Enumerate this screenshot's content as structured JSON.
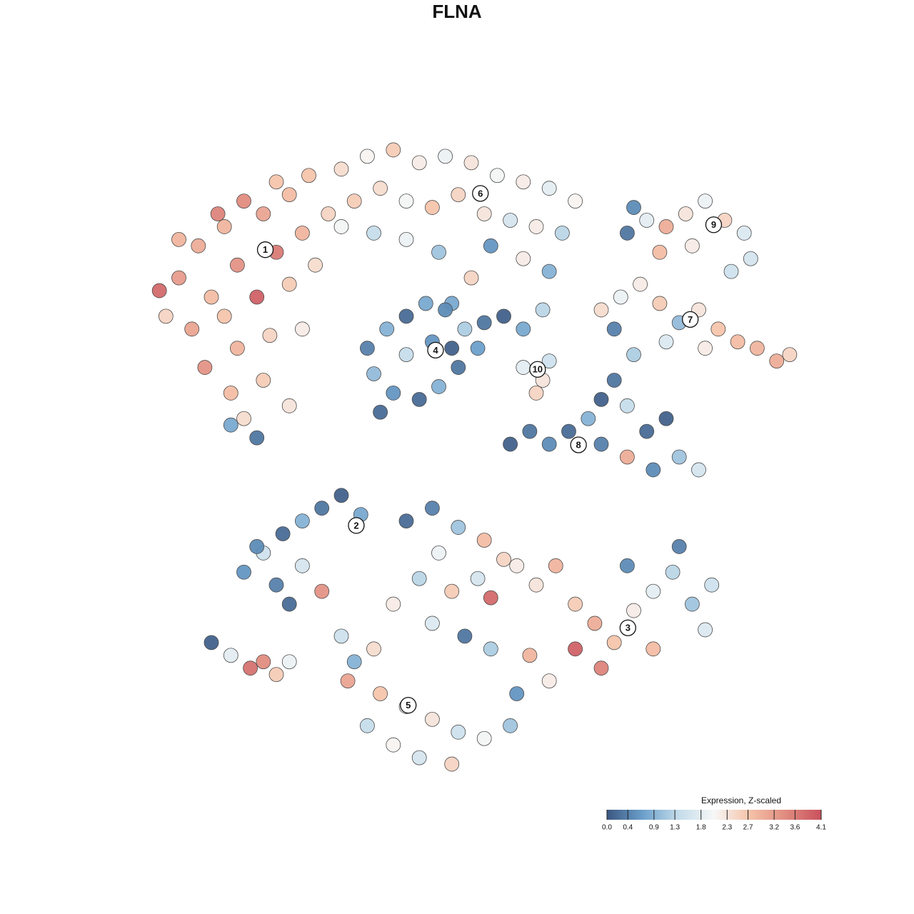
{
  "chart_data": {
    "type": "scatter",
    "title": "FLNA",
    "x": [
      5,
      8,
      12,
      15,
      18,
      22,
      25,
      10,
      14,
      20,
      24,
      3,
      7,
      12,
      17,
      22,
      26,
      9,
      14,
      19,
      24,
      13,
      18,
      22,
      15,
      13,
      17,
      2,
      5,
      28,
      20,
      11,
      30,
      34,
      38,
      42,
      46,
      50,
      54,
      58,
      62,
      66,
      32,
      36,
      40,
      44,
      48,
      52,
      56,
      60,
      64,
      30,
      35,
      40,
      45,
      53,
      58,
      62,
      50,
      47,
      74,
      77,
      80,
      83,
      86,
      89,
      92,
      93,
      79,
      84,
      90,
      75,
      70,
      73,
      76,
      79,
      82,
      85,
      88,
      91,
      94,
      97,
      99,
      86,
      80,
      75,
      72,
      34,
      37,
      40,
      43,
      46,
      49,
      51,
      48,
      45,
      42,
      38,
      35,
      40,
      44,
      47,
      52,
      55,
      58,
      61,
      36,
      58,
      61,
      62,
      60,
      56,
      59,
      62,
      65,
      68,
      70,
      72,
      74,
      77,
      80,
      82,
      85,
      78,
      74,
      70,
      15,
      18,
      21,
      24,
      27,
      30,
      33,
      20,
      24,
      27,
      22,
      17,
      10,
      13,
      16,
      18,
      20,
      22,
      60,
      63,
      66,
      69,
      72,
      75,
      78,
      81,
      84,
      87,
      78,
      70,
      66,
      62,
      74,
      82,
      59,
      86,
      40,
      44,
      48,
      52,
      55,
      45,
      42,
      47,
      51,
      38,
      44,
      49,
      53,
      35,
      31,
      36,
      40,
      44,
      48,
      52,
      56,
      38,
      42,
      47,
      34,
      57,
      32,
      30,
      53,
      57
    ],
    "y": [
      78,
      83,
      86,
      90,
      88,
      91,
      94,
      75,
      80,
      82,
      85,
      72,
      70,
      72,
      75,
      77,
      80,
      64,
      67,
      69,
      70,
      60,
      62,
      58,
      56,
      55,
      53,
      76,
      84,
      88,
      93,
      88,
      95,
      97,
      98,
      96,
      97,
      96,
      94,
      93,
      92,
      90,
      90,
      92,
      90,
      89,
      91,
      88,
      87,
      86,
      85,
      86,
      85,
      84,
      82,
      83,
      81,
      79,
      78,
      74,
      85,
      87,
      86,
      88,
      90,
      87,
      85,
      81,
      82,
      83,
      79,
      89,
      73,
      75,
      77,
      74,
      71,
      73,
      70,
      68,
      67,
      65,
      66,
      67,
      68,
      66,
      70,
      67,
      70,
      72,
      74,
      73,
      70,
      67,
      64,
      61,
      59,
      60,
      63,
      66,
      68,
      67,
      71,
      72,
      70,
      73,
      57,
      64,
      62,
      65,
      60,
      52,
      54,
      52,
      54,
      56,
      59,
      62,
      58,
      54,
      56,
      50,
      48,
      48,
      50,
      52,
      32,
      35,
      38,
      40,
      42,
      44,
      41,
      30,
      33,
      29,
      27,
      36,
      21,
      19,
      17,
      18,
      16,
      18,
      30,
      33,
      27,
      24,
      21,
      26,
      29,
      32,
      27,
      30,
      20,
      17,
      20,
      15,
      33,
      36,
      19,
      23,
      40,
      42,
      39,
      37,
      34,
      35,
      31,
      29,
      31,
      27,
      24,
      22,
      20,
      20,
      15,
      13,
      11,
      9,
      7,
      6,
      8,
      5,
      3,
      2,
      8,
      13,
      18,
      22,
      28,
      33
    ],
    "values": [
      3.2,
      3.0,
      2.9,
      3.4,
      3.1,
      2.8,
      2.7,
      2.8,
      3.3,
      3.6,
      2.9,
      2.5,
      3.1,
      2.7,
      3.9,
      2.6,
      2.4,
      3.3,
      2.9,
      2.5,
      2.2,
      2.8,
      2.6,
      2.3,
      2.4,
      0.8,
      0.3,
      3.8,
      2.9,
      2.5,
      2.7,
      3.5,
      2.4,
      2.1,
      2.6,
      2.2,
      1.9,
      2.3,
      2.0,
      2.2,
      1.8,
      2.1,
      2.6,
      2.4,
      2.0,
      2.7,
      2.5,
      2.3,
      1.6,
      2.2,
      1.3,
      2.0,
      1.4,
      1.9,
      1.1,
      0.6,
      2.2,
      0.9,
      2.5,
      0.8,
      0.3,
      1.8,
      3.0,
      2.3,
      1.9,
      2.5,
      1.7,
      1.6,
      2.8,
      2.2,
      1.5,
      0.5,
      2.4,
      1.9,
      2.2,
      2.6,
      1.0,
      2.3,
      2.7,
      2.8,
      2.9,
      3.0,
      2.5,
      2.2,
      1.7,
      1.2,
      0.4,
      0.4,
      0.9,
      0.2,
      0.8,
      0.5,
      1.2,
      0.7,
      0.3,
      0.9,
      0.2,
      0.6,
      1.0,
      1.4,
      0.6,
      0.1,
      0.3,
      0.1,
      0.8,
      1.3,
      0.2,
      1.8,
      2.3,
      1.5,
      2.5,
      0.1,
      0.3,
      0.5,
      0.2,
      0.9,
      0.1,
      0.3,
      1.4,
      0.2,
      0.1,
      1.1,
      1.6,
      0.5,
      3.0,
      0.4,
      0.6,
      1.5,
      0.2,
      0.9,
      0.3,
      0.1,
      0.8,
      0.4,
      1.6,
      3.3,
      0.2,
      0.5,
      0.1,
      1.8,
      3.7,
      3.4,
      2.6,
      1.9,
      2.3,
      2.9,
      2.6,
      3.0,
      2.7,
      2.2,
      1.8,
      1.3,
      1.1,
      1.5,
      2.8,
      3.5,
      3.9,
      2.2,
      0.5,
      0.4,
      2.9,
      1.7,
      0.2,
      0.4,
      1.1,
      2.8,
      2.5,
      1.9,
      1.3,
      2.6,
      1.6,
      2.2,
      1.7,
      0.3,
      1.2,
      2.4,
      3.1,
      2.7,
      1.9,
      2.3,
      1.5,
      2.0,
      1.1,
      2.1,
      1.6,
      2.5,
      1.4,
      0.6,
      0.9,
      1.5,
      3.8,
      2.2
    ],
    "xlim": [
      0,
      100
    ],
    "ylim": [
      0,
      100
    ],
    "annotations": [
      {
        "text": "1",
        "x": 18.3,
        "y": 82.4
      },
      {
        "text": "2",
        "x": 32.3,
        "y": 39.3
      },
      {
        "text": "3",
        "x": 74.1,
        "y": 23.3
      },
      {
        "text": "4",
        "x": 44.5,
        "y": 66.7
      },
      {
        "text": "5",
        "x": 40.3,
        "y": 11.2
      },
      {
        "text": "6",
        "x": 51.4,
        "y": 91.2
      },
      {
        "text": "7",
        "x": 83.7,
        "y": 71.5
      },
      {
        "text": "8",
        "x": 66.5,
        "y": 51.9
      },
      {
        "text": "9",
        "x": 87.3,
        "y": 86.3
      },
      {
        "text": "10",
        "x": 60.2,
        "y": 63.7
      }
    ],
    "colorbar": {
      "title": "Expression, Z-scaled",
      "lim": [
        0,
        4.1
      ],
      "colors": [
        "#3b5780",
        "#6a9fcb",
        "#c3dcea",
        "#f7f7f7",
        "#f5c2a8",
        "#e08b7f",
        "#c9515d"
      ],
      "ticks": [
        {
          "value": 0,
          "label": "0.0"
        },
        0.4,
        0.9,
        1.3,
        1.8,
        2.3,
        2.7,
        3.2,
        3.6,
        4.1
      ]
    }
  }
}
